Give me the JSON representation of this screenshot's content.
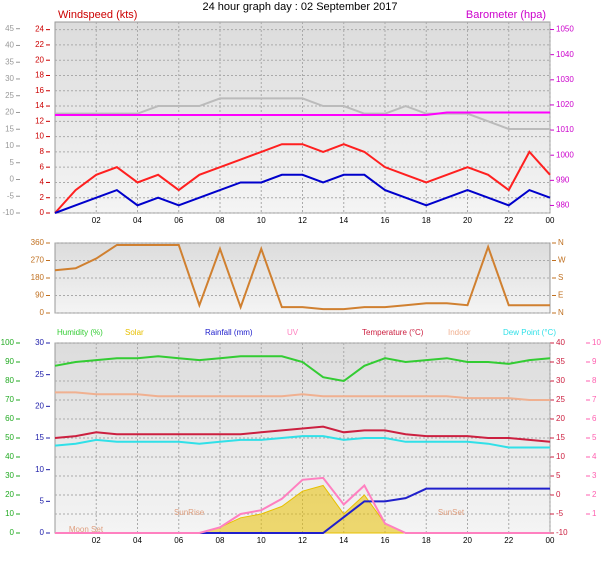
{
  "chart_data": [
    {
      "type": "line",
      "title": "24 hour graph day : 02 September 2017",
      "ylabel": "Windspeed (kts)",
      "y2label": "Barometer (hpa)",
      "x": [
        0,
        1,
        2,
        3,
        4,
        5,
        6,
        7,
        8,
        9,
        10,
        11,
        12,
        13,
        14,
        15,
        16,
        17,
        18,
        19,
        20,
        21,
        22,
        23,
        24
      ],
      "xlim": [
        0,
        24
      ],
      "xticks": [
        {
          "value": 2,
          "label": "02"
        },
        {
          "value": 4,
          "label": "04"
        },
        {
          "value": 6,
          "label": "06"
        },
        {
          "value": 8,
          "label": "08"
        },
        10,
        12,
        14,
        16,
        18,
        20,
        22,
        {
          "value": 24,
          "label": "00"
        }
      ],
      "ylim": [
        0,
        25
      ],
      "yticks": [
        0,
        2,
        4,
        6,
        8,
        10,
        12,
        14,
        16,
        18,
        20,
        22,
        24
      ],
      "y2lim": [
        977,
        1053
      ],
      "y2ticks": [
        980,
        990,
        1000,
        1010,
        1020,
        1030,
        1040,
        1050
      ],
      "y3lim": [
        -10,
        47
      ],
      "y3ticks": [
        -10,
        -5,
        0,
        5,
        10,
        15,
        20,
        25,
        30,
        35,
        40,
        45
      ],
      "grid": true,
      "series": [
        {
          "color": "#bbbbbb",
          "axis": "y",
          "values": [
            13,
            13,
            13,
            13,
            13,
            14,
            14,
            14,
            15,
            15,
            15,
            15,
            15,
            14,
            14,
            13,
            13,
            14,
            13,
            13,
            13,
            12,
            11,
            11,
            11
          ]
        },
        {
          "color": "#ff00ff",
          "axis": "y2",
          "values": [
            1016,
            1016,
            1016,
            1016,
            1016,
            1016,
            1016,
            1016,
            1016,
            1016,
            1016,
            1016,
            1016,
            1016,
            1016,
            1016,
            1016,
            1016,
            1016,
            1017,
            1017,
            1017,
            1017,
            1017,
            1017
          ]
        },
        {
          "color": "#ff2020",
          "axis": "y",
          "values": [
            0,
            3,
            5,
            6,
            4,
            5,
            3,
            5,
            6,
            7,
            8,
            9,
            9,
            8,
            9,
            8,
            6,
            5,
            4,
            5,
            6,
            5,
            3,
            8,
            5
          ]
        },
        {
          "color": "#0000cc",
          "axis": "y",
          "values": [
            0,
            1,
            2,
            3,
            1,
            2,
            1,
            2,
            3,
            4,
            4,
            5,
            5,
            4,
            5,
            5,
            3,
            2,
            1,
            2,
            3,
            2,
            1,
            3,
            2
          ]
        }
      ]
    },
    {
      "type": "line",
      "x": [
        0,
        1,
        2,
        3,
        4,
        5,
        6,
        7,
        8,
        9,
        10,
        11,
        12,
        13,
        14,
        15,
        16,
        17,
        18,
        19,
        20,
        21,
        22,
        23,
        24
      ],
      "xlim": [
        0,
        24
      ],
      "ylim": [
        0,
        360
      ],
      "yticks": [
        0,
        90,
        180,
        270,
        360
      ],
      "y2lim": [
        0,
        360
      ],
      "y2ticks": [
        {
          "value": 0,
          "label": "N"
        },
        {
          "value": 90,
          "label": "E"
        },
        {
          "value": 180,
          "label": "S"
        },
        {
          "value": 270,
          "label": "W"
        },
        {
          "value": 360,
          "label": "N"
        }
      ],
      "grid": true,
      "series": [
        {
          "color": "#d08030",
          "axis": "y",
          "values": [
            220,
            230,
            280,
            350,
            350,
            350,
            350,
            40,
            330,
            30,
            330,
            30,
            30,
            20,
            20,
            30,
            30,
            40,
            50,
            50,
            40,
            340,
            40,
            40,
            40
          ]
        }
      ]
    },
    {
      "type": "line",
      "x": [
        0,
        1,
        2,
        3,
        4,
        5,
        6,
        7,
        8,
        9,
        10,
        11,
        12,
        13,
        14,
        15,
        16,
        17,
        18,
        19,
        20,
        21,
        22,
        23,
        24
      ],
      "xlim": [
        0,
        24
      ],
      "xticks": [
        {
          "value": 2,
          "label": "02"
        },
        {
          "value": 4,
          "label": "04"
        },
        {
          "value": 6,
          "label": "06"
        },
        {
          "value": 8,
          "label": "08"
        },
        10,
        12,
        14,
        16,
        18,
        20,
        22,
        {
          "value": 24,
          "label": "00"
        }
      ],
      "ylim": [
        0,
        100
      ],
      "yticks": [
        0,
        10,
        20,
        30,
        40,
        50,
        60,
        70,
        80,
        90,
        100
      ],
      "y2lim": [
        -10,
        40
      ],
      "y2ticks": [
        -10,
        -5,
        0,
        5,
        10,
        15,
        20,
        25,
        30,
        35,
        40
      ],
      "y3lim": [
        0,
        30
      ],
      "y3ticks": [
        0,
        5,
        10,
        15,
        20,
        25,
        30
      ],
      "y4lim": [
        0,
        10
      ],
      "y4ticks": [
        1,
        2,
        3,
        4,
        5,
        6,
        7,
        8,
        9,
        10
      ],
      "grid": true,
      "annotations": [
        {
          "text": "Moon Set",
          "x": 1.5
        },
        {
          "text": "SunRise",
          "x": 6.5
        },
        {
          "text": "SunSet",
          "x": 19.2
        }
      ],
      "series": [
        {
          "name": "Humidity (%)",
          "color": "#33cc33",
          "axis": "y",
          "values": [
            88,
            90,
            91,
            92,
            92,
            93,
            92,
            91,
            92,
            93,
            93,
            93,
            90,
            82,
            80,
            88,
            92,
            90,
            91,
            92,
            90,
            90,
            89,
            91,
            92
          ]
        },
        {
          "name": "Solar",
          "color": "#e8c000",
          "axis": "y",
          "area": true,
          "values": [
            0,
            0,
            0,
            0,
            0,
            0,
            0,
            0,
            3,
            8,
            10,
            14,
            22,
            25,
            10,
            20,
            5,
            0,
            0,
            0,
            0,
            0,
            0,
            0,
            0
          ]
        },
        {
          "name": "Rainfall (mm)",
          "color": "#2020cc",
          "axis": "y3",
          "values": [
            0,
            0,
            0,
            0,
            0,
            0,
            0,
            0,
            0,
            0,
            0,
            0,
            0,
            0,
            2.5,
            5,
            5,
            5.5,
            7,
            7,
            7,
            7,
            7,
            7,
            7
          ]
        },
        {
          "name": "UV",
          "color": "#ff80c0",
          "axis": "y4",
          "values": [
            0,
            0,
            0,
            0,
            0,
            0,
            0,
            0,
            0.3,
            1,
            1.2,
            1.8,
            2.8,
            2.9,
            1.5,
            2.5,
            0.5,
            0,
            0,
            0,
            0,
            0,
            0,
            0,
            0
          ]
        },
        {
          "name": "Temperature (°C)",
          "color": "#cc2040",
          "axis": "y2",
          "values": [
            15,
            15.5,
            16.5,
            16,
            16,
            16,
            16,
            16,
            16,
            16,
            16.5,
            17,
            17.5,
            18,
            16.5,
            17,
            17,
            16,
            15.5,
            15.5,
            15.5,
            15,
            15,
            14.5,
            14
          ]
        },
        {
          "name": "Indoor",
          "color": "#f0b090",
          "axis": "y2",
          "values": [
            27,
            27,
            26.5,
            26.5,
            26.5,
            26,
            26,
            26,
            26,
            26,
            26,
            26,
            26.5,
            26,
            26,
            26,
            26,
            26,
            26,
            26,
            25.5,
            25.5,
            25.5,
            25,
            25
          ]
        },
        {
          "name": "Dew Point (°C)",
          "color": "#30e0e8",
          "axis": "y2",
          "values": [
            13,
            13.5,
            14.5,
            14,
            14,
            14,
            14,
            13.5,
            14,
            14.5,
            14.5,
            15,
            15.5,
            15.5,
            14.5,
            15,
            15,
            14,
            14,
            14,
            14,
            13.5,
            12.5,
            12.5,
            12.5
          ]
        }
      ]
    }
  ]
}
